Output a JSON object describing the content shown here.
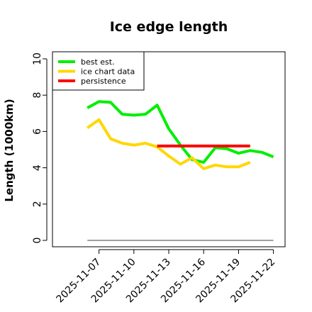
{
  "chart_data": {
    "type": "line",
    "title": "Ice edge length",
    "xlabel": "",
    "ylabel": "Length (1000km)",
    "ylim": [
      0,
      10.5
    ],
    "yticks": [
      0,
      2,
      4,
      6,
      8,
      10
    ],
    "x_range": [
      "2025-11-03",
      "2025-11-23"
    ],
    "xticks": [
      "2025-11-07",
      "2025-11-10",
      "2025-11-13",
      "2025-11-16",
      "2025-11-19",
      "2025-11-22"
    ],
    "grid": false,
    "legend_position": "top-left",
    "series": [
      {
        "name": "best est.",
        "color": "#00ee00",
        "x": [
          "2025-11-06",
          "2025-11-07",
          "2025-11-08",
          "2025-11-09",
          "2025-11-10",
          "2025-11-11",
          "2025-11-12",
          "2025-11-13",
          "2025-11-14",
          "2025-11-15",
          "2025-11-16",
          "2025-11-17",
          "2025-11-18",
          "2025-11-19",
          "2025-11-20",
          "2025-11-21",
          "2025-11-22"
        ],
        "y": [
          7.3,
          7.65,
          7.6,
          6.95,
          6.9,
          6.95,
          7.45,
          6.15,
          5.25,
          4.45,
          4.3,
          5.1,
          5.05,
          4.8,
          4.95,
          4.85,
          4.6
        ]
      },
      {
        "name": "ice chart data",
        "color": "#ffd700",
        "x": [
          "2025-11-06",
          "2025-11-07",
          "2025-11-08",
          "2025-11-09",
          "2025-11-10",
          "2025-11-11",
          "2025-11-12",
          "2025-11-13",
          "2025-11-14",
          "2025-11-15",
          "2025-11-16",
          "2025-11-17",
          "2025-11-18",
          "2025-11-19",
          "2025-11-20"
        ],
        "y": [
          6.2,
          6.65,
          5.6,
          5.35,
          5.25,
          5.35,
          5.15,
          4.65,
          4.2,
          4.55,
          3.95,
          4.15,
          4.05,
          4.05,
          4.3
        ]
      },
      {
        "name": "persistence",
        "color": "#ff0000",
        "x": [
          "2025-11-12",
          "2025-11-20"
        ],
        "y": [
          5.2,
          5.2
        ]
      },
      {
        "name": "",
        "color": "#808080",
        "x": [
          "2025-11-06",
          "2025-11-22"
        ],
        "y": [
          0,
          0
        ]
      }
    ]
  }
}
